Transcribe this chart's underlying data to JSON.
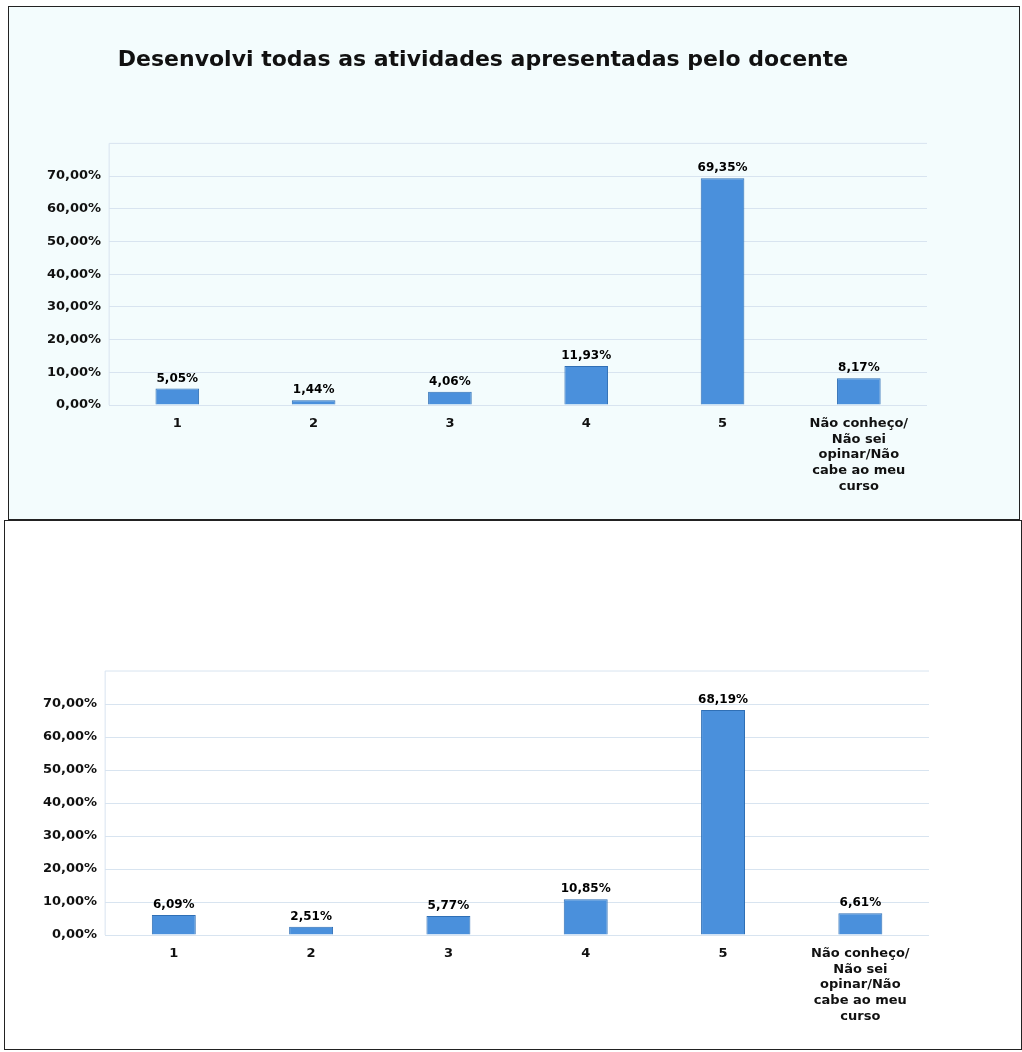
{
  "chart_data": [
    {
      "type": "bar",
      "title": "Desenvolvi todas as atividades apresentadas pelo docente",
      "categories": [
        "1",
        "2",
        "3",
        "4",
        "5",
        "Não conheço/Não sei opinar/Não cabe ao meu curso"
      ],
      "values": [
        5.05,
        1.44,
        4.06,
        11.93,
        69.35,
        8.17
      ],
      "value_labels": [
        "5,05%",
        "1,44%",
        "4,06%",
        "11,93%",
        "69,35%",
        "8,17%"
      ],
      "color": "#4a90dc",
      "ylim": [
        0,
        80
      ],
      "yticks": [
        {
          "value": 0,
          "label": "0,00%"
        },
        {
          "value": 10,
          "label": "10,00%"
        },
        {
          "value": 20,
          "label": "20,00%"
        },
        {
          "value": 30,
          "label": "30,00%"
        },
        {
          "value": 40,
          "label": "40,00%"
        },
        {
          "value": 50,
          "label": "50,00%"
        },
        {
          "value": 60,
          "label": "60,00%"
        },
        {
          "value": 70,
          "label": "70,00%"
        }
      ],
      "grid": "y",
      "legend": false
    },
    {
      "type": "bar",
      "categories": [
        "1",
        "2",
        "3",
        "4",
        "5",
        "Não conheço/Não sei opinar/Não cabe ao meu curso"
      ],
      "values": [
        6.09,
        2.51,
        5.77,
        10.85,
        68.19,
        6.61
      ],
      "value_labels": [
        "6,09%",
        "2,51%",
        "5,77%",
        "10,85%",
        "68,19%",
        "6,61%"
      ],
      "color": "#4a90dc",
      "ylim": [
        0,
        80
      ],
      "yticks": [
        {
          "value": 0,
          "label": "0,00%"
        },
        {
          "value": 10,
          "label": "10,00%"
        },
        {
          "value": 20,
          "label": "20,00%"
        },
        {
          "value": 30,
          "label": "30,00%"
        },
        {
          "value": 40,
          "label": "40,00%"
        },
        {
          "value": 50,
          "label": "50,00%"
        },
        {
          "value": 60,
          "label": "60,00%"
        },
        {
          "value": 70,
          "label": "70,00%"
        }
      ],
      "grid": "y",
      "legend": false
    }
  ]
}
